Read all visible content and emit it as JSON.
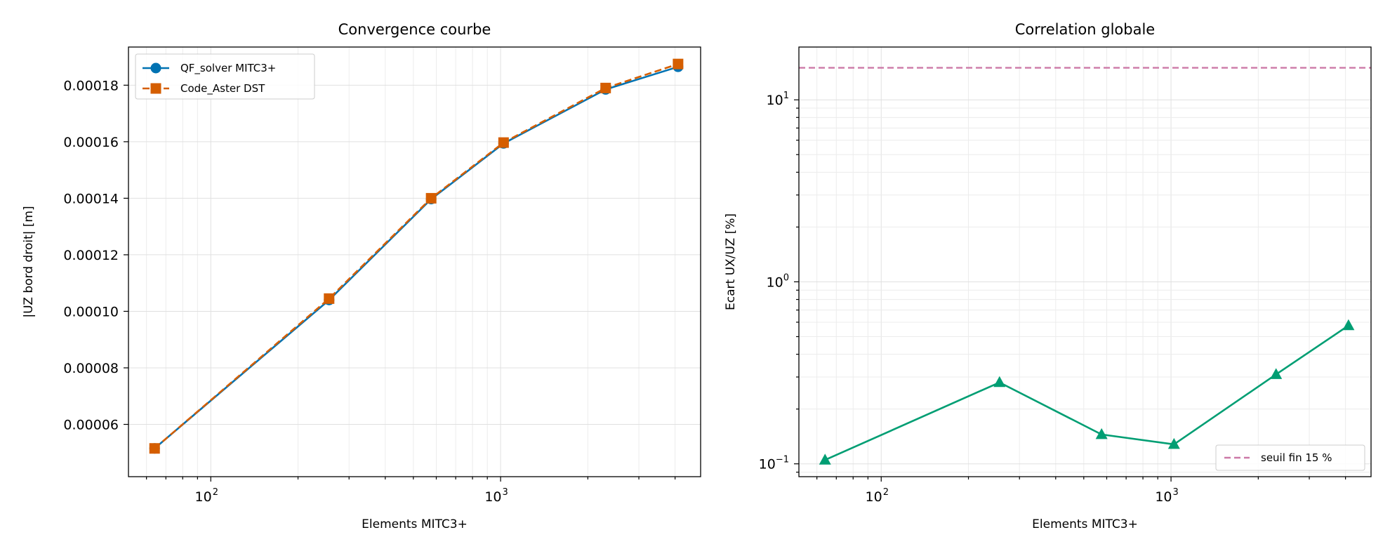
{
  "chart_data": [
    {
      "type": "line",
      "title": "Convergence courbe",
      "xlabel": "Elements MITC3+",
      "ylabel": "|UZ bord droit| [m]",
      "xscale": "log",
      "xlim": [
        52,
        4900
      ],
      "ylim": [
        4.15e-05,
        0.0001935
      ],
      "grid": true,
      "legend_position": "upper-left",
      "x_ticks": [
        {
          "value": 100,
          "base": "10",
          "exp": "2"
        },
        {
          "value": 1000,
          "base": "10",
          "exp": "3"
        }
      ],
      "y_ticks": [
        {
          "value": 6e-05,
          "label": "0.00006"
        },
        {
          "value": 8e-05,
          "label": "0.00008"
        },
        {
          "value": 0.0001,
          "label": "0.00010"
        },
        {
          "value": 0.00012,
          "label": "0.00012"
        },
        {
          "value": 0.00014,
          "label": "0.00014"
        },
        {
          "value": 0.00016,
          "label": "0.00016"
        },
        {
          "value": 0.00018,
          "label": "0.00018"
        }
      ],
      "x": [
        64,
        256,
        576,
        1024,
        2304,
        4096
      ],
      "series": [
        {
          "name": "QF_solver MITC3+",
          "values": [
            5.15e-05,
            0.000104,
            0.0001397,
            0.0001594,
            0.0001785,
            0.0001865
          ],
          "color": "#0072b2",
          "marker": "circle",
          "linestyle": "solid"
        },
        {
          "name": "Code_Aster DST",
          "values": [
            5.15e-05,
            0.0001045,
            0.00014,
            0.0001597,
            0.000179,
            0.0001875
          ],
          "color": "#d55e00",
          "marker": "square",
          "linestyle": "dashed"
        }
      ]
    },
    {
      "type": "line",
      "title": "Correlation globale",
      "xlabel": "Elements MITC3+",
      "ylabel": "Ecart UX/UZ [%]",
      "xscale": "log",
      "yscale": "log",
      "xlim": [
        52,
        4900
      ],
      "ylim": [
        0.085,
        19.5
      ],
      "grid": true,
      "legend_position": "lower-right",
      "x_ticks": [
        {
          "value": 100,
          "base": "10",
          "exp": "2"
        },
        {
          "value": 1000,
          "base": "10",
          "exp": "3"
        }
      ],
      "y_ticks": [
        {
          "value": 0.1,
          "base": "10",
          "exp": "−1"
        },
        {
          "value": 1,
          "base": "10",
          "exp": "0"
        },
        {
          "value": 10,
          "base": "10",
          "exp": "1"
        }
      ],
      "x": [
        64,
        256,
        576,
        1024,
        2304,
        4096
      ],
      "series": [
        {
          "values": [
            0.105,
            0.28,
            0.145,
            0.128,
            0.31,
            0.575
          ],
          "color": "#009e73",
          "marker": "triangle",
          "linestyle": "solid"
        }
      ],
      "threshold": {
        "name": "seuil fin 15 %",
        "value": 15,
        "color": "#cc79a7",
        "linestyle": "dashed"
      }
    }
  ]
}
